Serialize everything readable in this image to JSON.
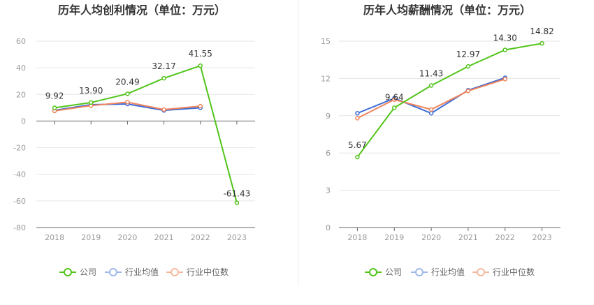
{
  "chart_data": [
    {
      "type": "line",
      "title": "历年人均创利情况（单位：万元）",
      "categories": [
        "2018",
        "2019",
        "2020",
        "2021",
        "2022",
        "2023"
      ],
      "yticks": [
        60,
        40,
        20,
        0,
        -20,
        -40,
        -60,
        -80
      ],
      "ylim": [
        -80,
        60
      ],
      "xlabel": "",
      "ylabel": "",
      "series": [
        {
          "name": "公司",
          "color": "#52c41a",
          "values": [
            9.92,
            13.9,
            20.49,
            32.17,
            41.55,
            -61.43
          ],
          "labels": [
            "9.92",
            "13.90",
            "20.49",
            "32.17",
            "41.55",
            "-61.43"
          ]
        },
        {
          "name": "行业均值",
          "color": "#3b6bd6",
          "values": [
            8.0,
            12.3,
            12.8,
            8.0,
            10.0,
            null
          ]
        },
        {
          "name": "行业中位数",
          "color": "#f0845c",
          "values": [
            7.6,
            11.6,
            14.2,
            8.6,
            11.2,
            null
          ]
        }
      ],
      "legend_position": "bottom"
    },
    {
      "type": "line",
      "title": "历年人均薪酬情况（单位：万元）",
      "categories": [
        "2018",
        "2019",
        "2020",
        "2021",
        "2022",
        "2023"
      ],
      "yticks": [
        15,
        12,
        9,
        6,
        3,
        0
      ],
      "ylim": [
        0,
        15
      ],
      "xlabel": "",
      "ylabel": "",
      "series": [
        {
          "name": "公司",
          "color": "#52c41a",
          "values": [
            5.67,
            9.64,
            11.43,
            12.97,
            14.3,
            14.82
          ],
          "labels": [
            "5.67",
            "9.64",
            "11.43",
            "12.97",
            "14.30",
            "14.82"
          ]
        },
        {
          "name": "行业均值",
          "color": "#3b6bd6",
          "values": [
            9.2,
            10.4,
            9.2,
            11.05,
            12.05,
            null
          ]
        },
        {
          "name": "行业中位数",
          "color": "#f0845c",
          "values": [
            8.8,
            10.3,
            9.5,
            11.0,
            11.95,
            null
          ]
        }
      ],
      "legend_position": "bottom"
    }
  ],
  "legend_labels": [
    "公司",
    "行业均值",
    "行业中位数"
  ]
}
